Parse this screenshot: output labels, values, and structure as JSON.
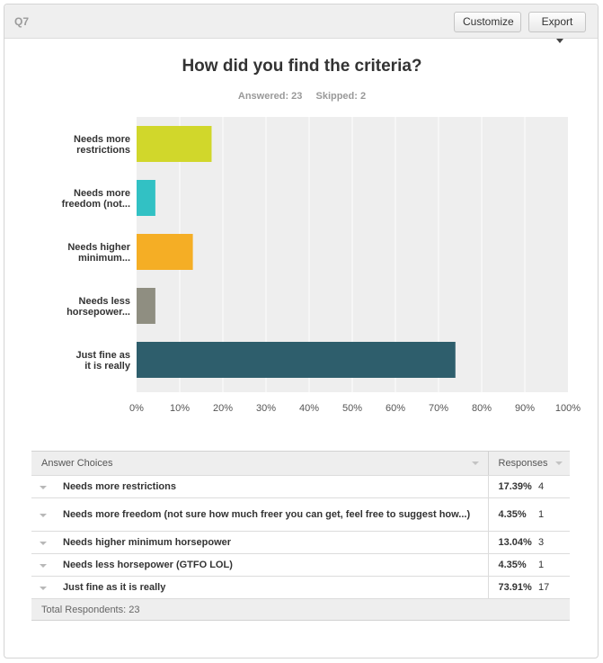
{
  "header": {
    "question_number": "Q7",
    "customize_label": "Customize",
    "export_label": "Export"
  },
  "question": {
    "title": "How did you find the criteria?",
    "answered": "Answered: 23",
    "skipped": "Skipped: 2"
  },
  "chart_data": {
    "type": "bar",
    "orientation": "horizontal",
    "categories": [
      [
        "Needs more",
        "restrictions"
      ],
      [
        "Needs more",
        "freedom (not..."
      ],
      [
        "Needs higher",
        "minimum..."
      ],
      [
        "Needs less",
        "horsepower..."
      ],
      [
        "Just fine as",
        "it is really"
      ]
    ],
    "values": [
      17.39,
      4.35,
      13.04,
      4.35,
      73.91
    ],
    "colors": [
      "#d1d72b",
      "#32c1c4",
      "#f5ae25",
      "#8f8e81",
      "#2e5e6c"
    ],
    "xticks": [
      "0%",
      "10%",
      "20%",
      "30%",
      "40%",
      "50%",
      "60%",
      "70%",
      "80%",
      "90%",
      "100%"
    ],
    "xlim": [
      0,
      100
    ],
    "grid": true
  },
  "table": {
    "header_choice": "Answer Choices",
    "header_responses": "Responses",
    "rows": [
      {
        "choice": "Needs more restrictions",
        "pct": "17.39%",
        "count": "4"
      },
      {
        "choice": "Needs more freedom (not sure how much freer you can get, feel free to suggest how...)",
        "pct": "4.35%",
        "count": "1"
      },
      {
        "choice": "Needs higher minimum horsepower",
        "pct": "13.04%",
        "count": "3"
      },
      {
        "choice": "Needs less horsepower (GTFO LOL)",
        "pct": "4.35%",
        "count": "1"
      },
      {
        "choice": "Just fine as it is really",
        "pct": "73.91%",
        "count": "17"
      }
    ],
    "total": "Total Respondents: 23"
  }
}
